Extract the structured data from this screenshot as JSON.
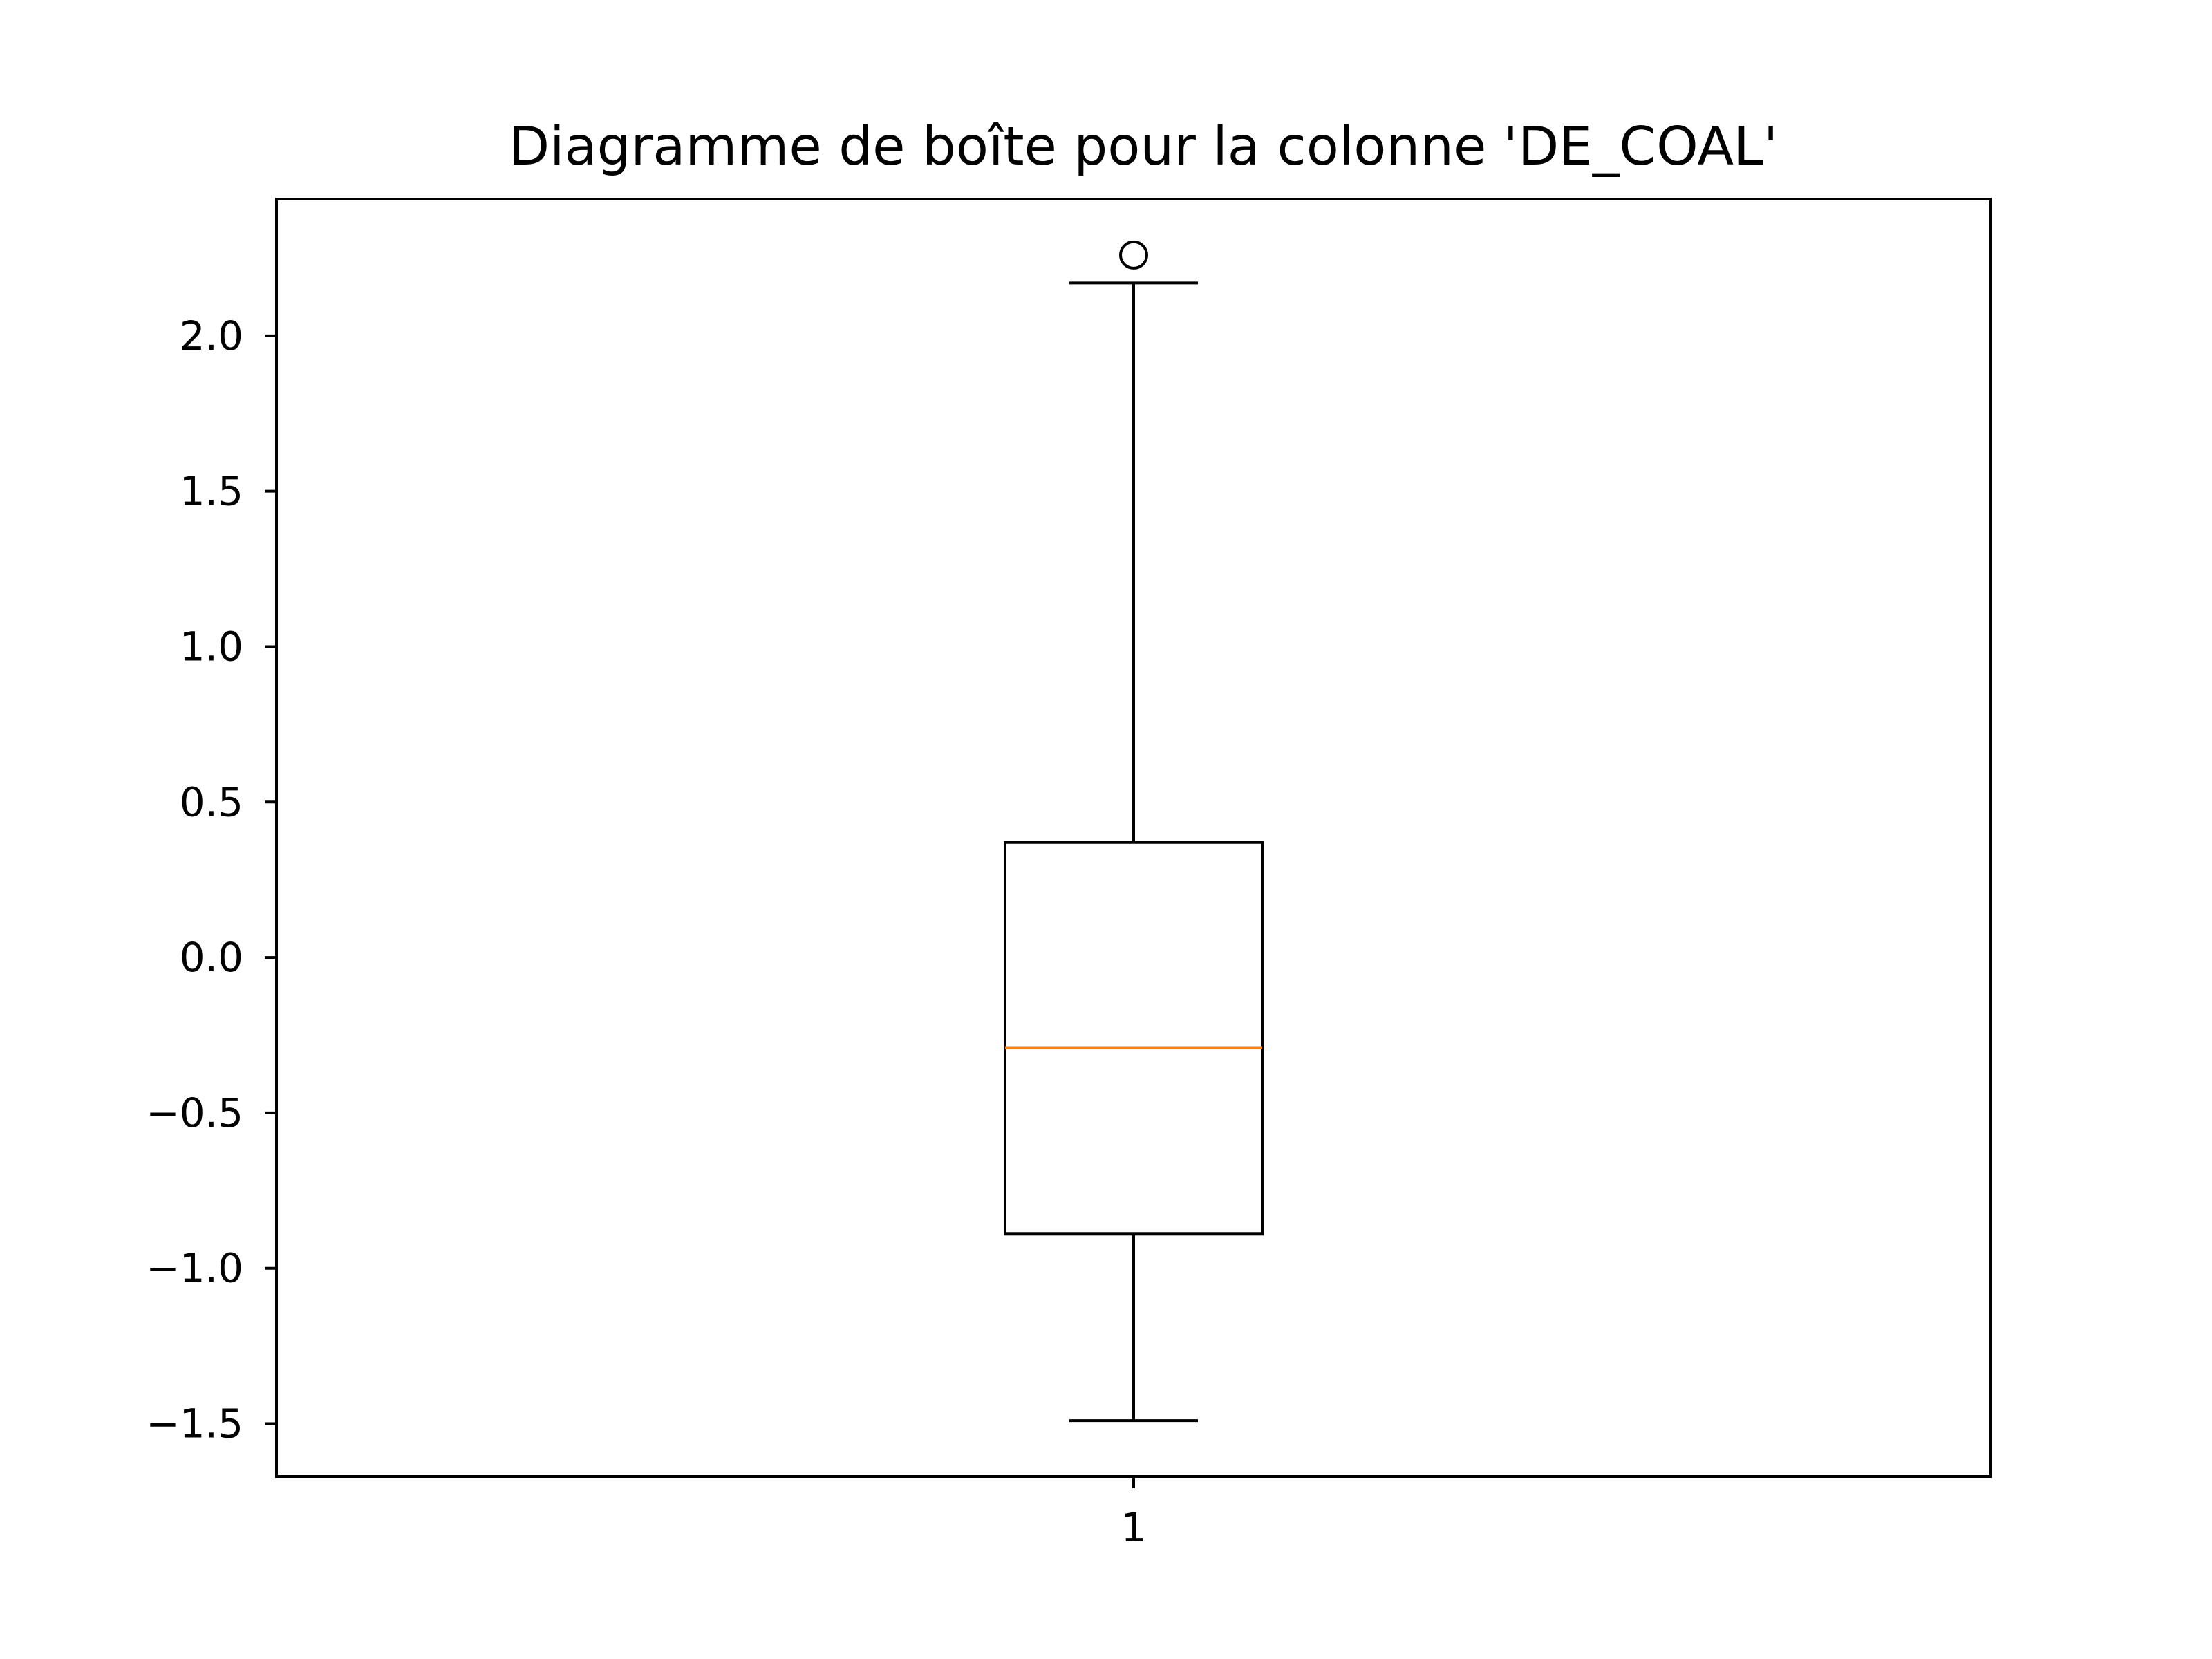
{
  "chart_data": {
    "type": "box",
    "title": "Diagramme de boîte pour la colonne 'DE_COAL'",
    "xlabel": "",
    "ylabel": "",
    "categories": [
      "1"
    ],
    "boxes": [
      {
        "category": "1",
        "whisker_low": -1.49,
        "q1": -0.89,
        "median": -0.29,
        "q3": 0.37,
        "whisker_high": 2.17,
        "outliers": [
          2.26
        ]
      }
    ],
    "ylim": [
      -1.67,
      2.44
    ],
    "yticks": [
      {
        "value": -1.5,
        "label": "−1.5"
      },
      {
        "value": -1.0,
        "label": "−1.0"
      },
      {
        "value": -0.5,
        "label": "−0.5"
      },
      {
        "value": 0.0,
        "label": "0.0"
      },
      {
        "value": 0.5,
        "label": "0.5"
      },
      {
        "value": 1.0,
        "label": "1.0"
      },
      {
        "value": 1.5,
        "label": "1.5"
      },
      {
        "value": 2.0,
        "label": "2.0"
      }
    ],
    "grid": false,
    "colors": {
      "box": "#000000",
      "median": "#ff7f0e",
      "whisker": "#000000",
      "outlier": "#000000"
    }
  }
}
